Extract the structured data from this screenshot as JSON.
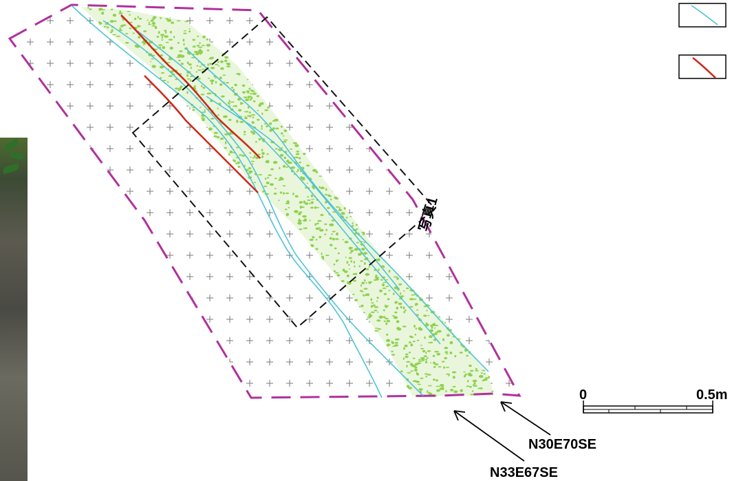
{
  "photo_label": "写真1",
  "scale_bar": {
    "start_label": "0",
    "end_label": "0.5m"
  },
  "orientation_labels": [
    "N30E70SE",
    "N33E67SE"
  ],
  "legend": [
    {
      "icon": "cyan-line-swatch-icon",
      "color": "#4fc3d6"
    },
    {
      "icon": "red-line-swatch-icon",
      "color": "#cc2a1a"
    }
  ],
  "colors": {
    "boundary": "#b0309c",
    "zone_fill": "#8fd14f",
    "joint_line": "#4fc3d6",
    "fault_line": "#cc2a1a",
    "frame": "#000000"
  }
}
